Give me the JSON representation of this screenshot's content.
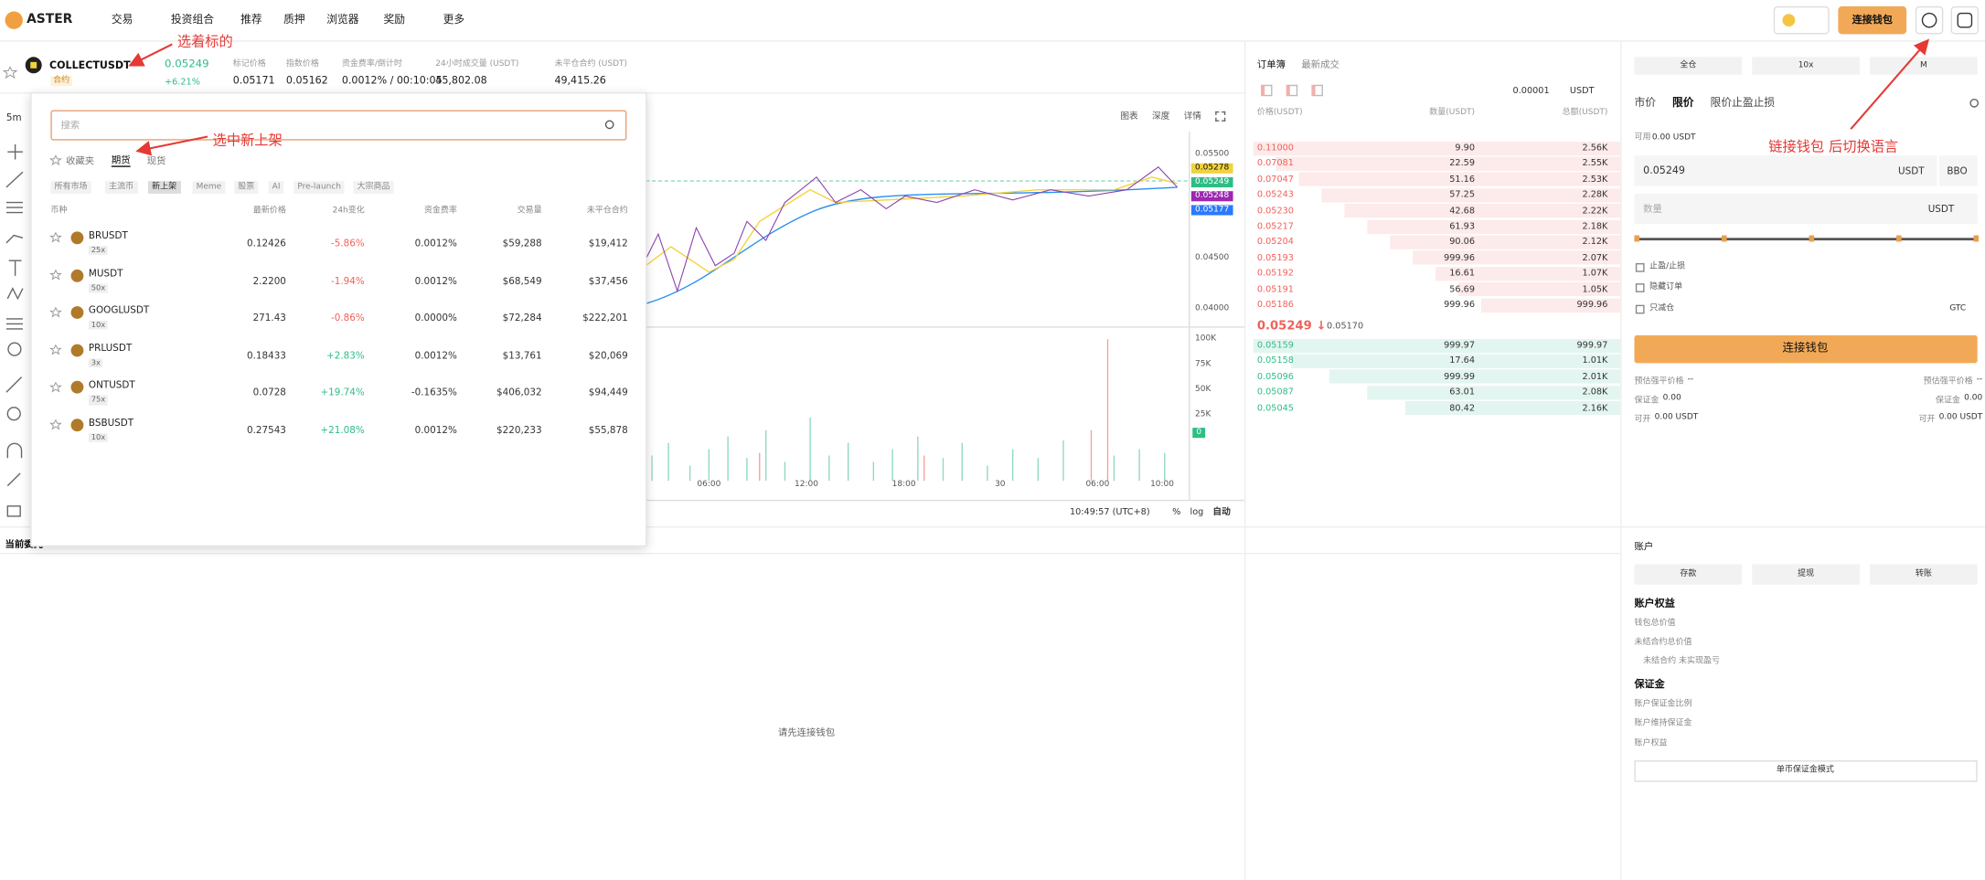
{
  "nav": {
    "logo": "ASTER",
    "menu": [
      "交易",
      "投资组合",
      "推荐",
      "质押",
      "浏览器",
      "奖励",
      "更多"
    ],
    "connect_button": "连接钱包"
  },
  "ticker": {
    "symbol": "COLLECTUSDT",
    "tag": "合约",
    "price": "0.05249",
    "change": "+6.21%",
    "stats": [
      {
        "label": "标记价格",
        "value": "0.05171"
      },
      {
        "label": "指数价格",
        "value": "0.05162"
      },
      {
        "label": "资金费率/倒计时",
        "value": "0.0012% / 00:10:05"
      },
      {
        "label": "24小时成交量 (USDT)",
        "value": "45,802.08"
      },
      {
        "label": "未平仓合约 (USDT)",
        "value": "49,415.26"
      }
    ]
  },
  "annotations": [
    "选着标的",
    "选中新上架",
    "链接钱包 后切换语言"
  ],
  "market_dropdown": {
    "search_placeholder": "搜索",
    "tabs": [
      "收藏夹",
      "期货",
      "现货"
    ],
    "filters": [
      "所有市场",
      "主流币",
      "新上架",
      "Meme",
      "股票",
      "AI",
      "Pre-launch",
      "大宗商品"
    ],
    "columns": [
      "币种",
      "最新价格",
      "24h变化",
      "资金费率",
      "交易量",
      "未平仓合约"
    ],
    "rows": [
      {
        "symbol": "BRUSDT",
        "leverage": "25x",
        "price": "0.12426",
        "change": "-5.86%",
        "funding": "0.0012%",
        "volume": "$59,288",
        "open_interest": "$19,412"
      },
      {
        "symbol": "MUSDT",
        "leverage": "50x",
        "price": "2.2200",
        "change": "-1.94%",
        "funding": "0.0012%",
        "volume": "$68,549",
        "open_interest": "$37,456"
      },
      {
        "symbol": "GOOGLUSDT",
        "leverage": "10x",
        "price": "271.43",
        "change": "-0.86%",
        "funding": "0.0000%",
        "volume": "$72,284",
        "open_interest": "$222,201"
      },
      {
        "symbol": "PRLUSDT",
        "leverage": "3x",
        "price": "0.18433",
        "change": "+2.83%",
        "funding": "0.0012%",
        "volume": "$13,761",
        "open_interest": "$20,069"
      },
      {
        "symbol": "ONTUSDT",
        "leverage": "75x",
        "price": "0.0728",
        "change": "+19.74%",
        "funding": "-0.1635%",
        "volume": "$406,032",
        "open_interest": "$94,449"
      },
      {
        "symbol": "BSBUSDT",
        "leverage": "10x",
        "price": "0.27543",
        "change": "+21.08%",
        "funding": "0.0012%",
        "volume": "$220,233",
        "open_interest": "$55,878"
      }
    ]
  },
  "chart": {
    "interval": "5m",
    "views": [
      "图表",
      "深度",
      "详情"
    ],
    "price_axis": [
      "0.05500",
      "0.04500",
      "0.04000"
    ],
    "price_tags": [
      "0.05278",
      "0.05249",
      "0.05248",
      "0.05177"
    ],
    "volume_axis": [
      "100K",
      "75K",
      "50K",
      "25K",
      "0"
    ],
    "time_axis": [
      "06:00",
      "12:00",
      "18:00",
      "30",
      "06:00",
      "10:00"
    ],
    "clock": "10:49:57 (UTC+8)",
    "options": [
      "%",
      "log",
      "自动"
    ]
  },
  "order_book": {
    "tabs": [
      "订单簿",
      "最新成交"
    ],
    "tick_size": "0.00001",
    "unit": "USDT",
    "columns": [
      "价格(USDT)",
      "数量(USDT)",
      "总额(USDT)"
    ],
    "asks": [
      [
        "0.11000",
        "9.90",
        "2.56K"
      ],
      [
        "0.07081",
        "22.59",
        "2.55K"
      ],
      [
        "0.07047",
        "51.16",
        "2.53K"
      ],
      [
        "0.05243",
        "57.25",
        "2.28K"
      ],
      [
        "0.05230",
        "42.68",
        "2.22K"
      ],
      [
        "0.05217",
        "61.93",
        "2.18K"
      ],
      [
        "0.05204",
        "90.06",
        "2.12K"
      ],
      [
        "0.05193",
        "999.96",
        "2.07K"
      ],
      [
        "0.05192",
        "16.61",
        "1.07K"
      ],
      [
        "0.05191",
        "56.69",
        "1.05K"
      ],
      [
        "0.05186",
        "999.96",
        "999.96"
      ]
    ],
    "last_price": "0.05249 ↓",
    "mark_price": "0.05170",
    "bids": [
      [
        "0.05159",
        "999.97",
        "999.97"
      ],
      [
        "0.05158",
        "17.64",
        "1.01K"
      ],
      [
        "0.05096",
        "999.99",
        "2.01K"
      ],
      [
        "0.05087",
        "63.01",
        "2.08K"
      ],
      [
        "0.05045",
        "80.42",
        "2.16K"
      ]
    ]
  },
  "order_form": {
    "margin_mode": [
      "全仓",
      "10x",
      "M"
    ],
    "order_types": [
      "市价",
      "限价",
      "限价止盈止损"
    ],
    "available_label": "可用",
    "available": "0.00 USDT",
    "price": "0.05249",
    "price_unit": "USDT",
    "bbo": "BBO",
    "quantity_placeholder": "数量",
    "quantity_unit": "USDT",
    "options": [
      "止盈/止损",
      "隐藏订单",
      "只减仓"
    ],
    "tif": "GTC",
    "submit": "连接钱包",
    "summary_left": [
      {
        "label": "预估强平价格",
        "value": "--"
      },
      {
        "label": "保证金",
        "value": "0.00"
      },
      {
        "label": "可开",
        "value": "0.00 USDT"
      }
    ],
    "summary_right": [
      {
        "label": "预估强平价格",
        "value": "--"
      },
      {
        "label": "保证金",
        "value": "0.00"
      },
      {
        "label": "可开",
        "value": "0.00 USDT"
      }
    ]
  },
  "positions": {
    "tab": "当前委托",
    "empty": "请先连接钱包"
  },
  "account": {
    "title": "账户",
    "buttons": [
      "存款",
      "提现",
      "转账"
    ],
    "equity_title": "账户权益",
    "equity_rows": [
      "钱包总价值",
      "未结合约总价值",
      "未结合约 未实现盈亏"
    ],
    "margin_title": "保证金",
    "margin_rows": [
      "账户保证金比例",
      "账户维持保证金",
      "账户权益"
    ],
    "mode_button": "单币保证金模式"
  }
}
